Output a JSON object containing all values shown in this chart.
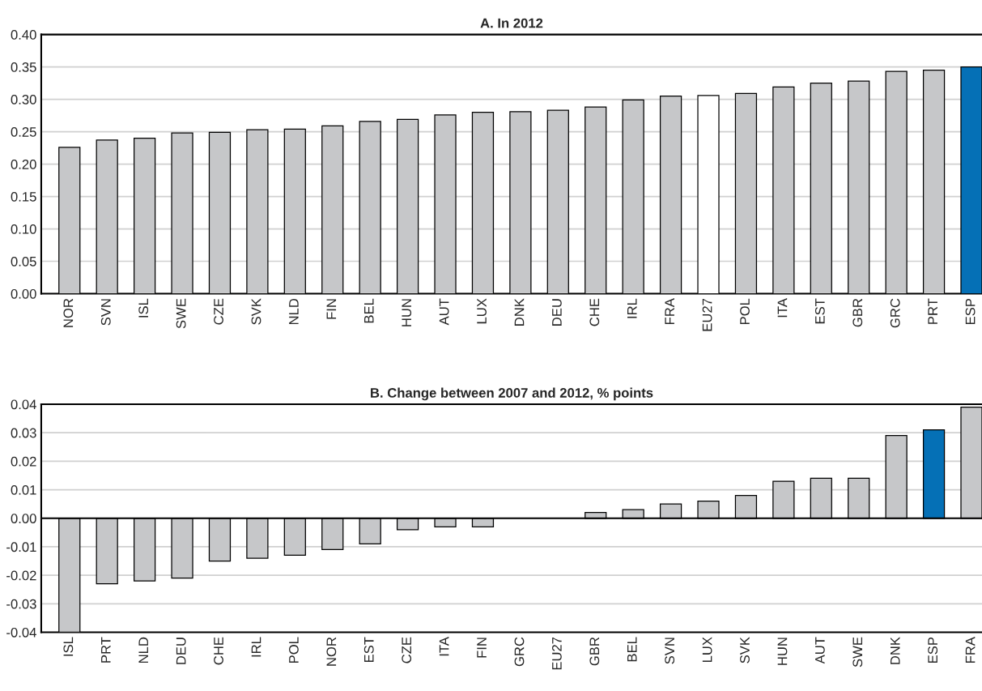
{
  "chart_data": [
    {
      "type": "bar",
      "title": "A. In 2012",
      "categories": [
        "NOR",
        "SVN",
        "ISL",
        "SWE",
        "CZE",
        "SVK",
        "NLD",
        "FIN",
        "BEL",
        "HUN",
        "AUT",
        "LUX",
        "DNK",
        "DEU",
        "CHE",
        "IRL",
        "FRA",
        "EU27",
        "POL",
        "ITA",
        "EST",
        "GBR",
        "GRC",
        "PRT",
        "ESP"
      ],
      "values": [
        0.226,
        0.237,
        0.24,
        0.248,
        0.249,
        0.253,
        0.254,
        0.259,
        0.266,
        0.269,
        0.276,
        0.28,
        0.281,
        0.283,
        0.288,
        0.299,
        0.305,
        0.306,
        0.309,
        0.319,
        0.325,
        0.328,
        0.343,
        0.345,
        0.35
      ],
      "colors": [
        "#c6c7c9",
        "#c6c7c9",
        "#c6c7c9",
        "#c6c7c9",
        "#c6c7c9",
        "#c6c7c9",
        "#c6c7c9",
        "#c6c7c9",
        "#c6c7c9",
        "#c6c7c9",
        "#c6c7c9",
        "#c6c7c9",
        "#c6c7c9",
        "#c6c7c9",
        "#c6c7c9",
        "#c6c7c9",
        "#c6c7c9",
        "#ffffff",
        "#c6c7c9",
        "#c6c7c9",
        "#c6c7c9",
        "#c6c7c9",
        "#c6c7c9",
        "#c6c7c9",
        "#0570b6"
      ],
      "ylim": [
        0,
        0.4
      ],
      "yticks": [
        {
          "value": 0,
          "label": "0.00"
        },
        {
          "value": 0.05,
          "label": "0.05"
        },
        {
          "value": 0.1,
          "label": "0.10"
        },
        {
          "value": 0.15,
          "label": "0.15"
        },
        {
          "value": 0.2,
          "label": "0.20"
        },
        {
          "value": 0.25,
          "label": "0.25"
        },
        {
          "value": 0.3,
          "label": "0.30"
        },
        {
          "value": 0.35,
          "label": "0.35"
        },
        {
          "value": 0.4,
          "label": "0.40"
        }
      ],
      "grid": "y"
    },
    {
      "type": "bar",
      "title": "B. Change between 2007 and 2012, % points",
      "categories": [
        "ISL",
        "PRT",
        "NLD",
        "DEU",
        "CHE",
        "IRL",
        "POL",
        "NOR",
        "EST",
        "CZE",
        "ITA",
        "FIN",
        "GRC",
        "EU27",
        "GBR",
        "BEL",
        "SVN",
        "LUX",
        "SVK",
        "HUN",
        "AUT",
        "SWE",
        "DNK",
        "ESP",
        "FRA"
      ],
      "values": [
        -0.04,
        -0.023,
        -0.022,
        -0.021,
        -0.015,
        -0.014,
        -0.013,
        -0.011,
        -0.009,
        -0.004,
        -0.003,
        -0.003,
        null,
        null,
        0.002,
        0.003,
        0.005,
        0.006,
        0.008,
        0.013,
        0.014,
        0.014,
        0.029,
        0.031,
        0.039
      ],
      "colors": [
        "#c6c7c9",
        "#c6c7c9",
        "#c6c7c9",
        "#c6c7c9",
        "#c6c7c9",
        "#c6c7c9",
        "#c6c7c9",
        "#c6c7c9",
        "#c6c7c9",
        "#c6c7c9",
        "#c6c7c9",
        "#c6c7c9",
        "#c6c7c9",
        "#ffffff",
        "#c6c7c9",
        "#c6c7c9",
        "#c6c7c9",
        "#c6c7c9",
        "#c6c7c9",
        "#c6c7c9",
        "#c6c7c9",
        "#c6c7c9",
        "#c6c7c9",
        "#0570b6",
        "#c6c7c9"
      ],
      "ylim": [
        -0.04,
        0.04
      ],
      "yticks": [
        {
          "value": -0.04,
          "label": "-0.04"
        },
        {
          "value": -0.03,
          "label": "-0.03"
        },
        {
          "value": -0.02,
          "label": "-0.02"
        },
        {
          "value": -0.01,
          "label": "-0.01"
        },
        {
          "value": 0,
          "label": "0.00"
        },
        {
          "value": 0.01,
          "label": "0.01"
        },
        {
          "value": 0.02,
          "label": "0.02"
        },
        {
          "value": 0.03,
          "label": "0.03"
        },
        {
          "value": 0.04,
          "label": "0.04"
        }
      ],
      "ref_lines": [
        {
          "axis": "y",
          "value": 0,
          "color": "#000000"
        }
      ],
      "grid": "y"
    }
  ]
}
